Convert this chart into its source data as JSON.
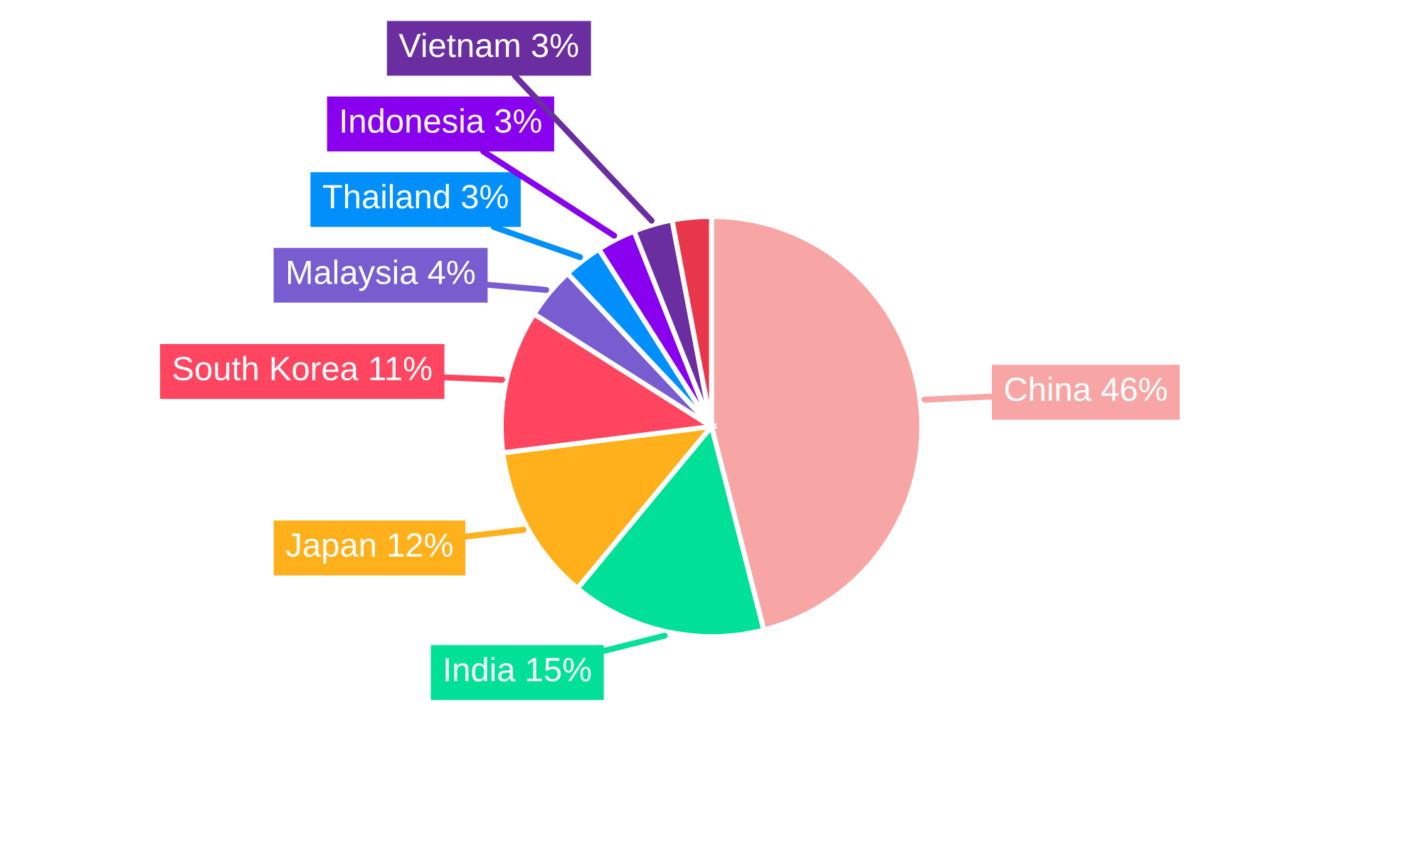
{
  "chart_data": {
    "type": "pie",
    "categories": [
      "China 46%",
      "India 15%",
      "Japan 12%",
      "South Korea 11%",
      "Malaysia 4%",
      "Thailand 3%",
      "Indonesia 3%",
      "Vietnam 3%",
      null
    ],
    "values": [
      46,
      15,
      12,
      11,
      4,
      3,
      3,
      3,
      3
    ],
    "colors": [
      "#f8a5a5",
      "#00e096",
      "#ffb01a",
      "#ff4560",
      "#775dd0",
      "#008ffb",
      "#8800ee",
      "#6a2ea0",
      "#e8364a"
    ]
  }
}
